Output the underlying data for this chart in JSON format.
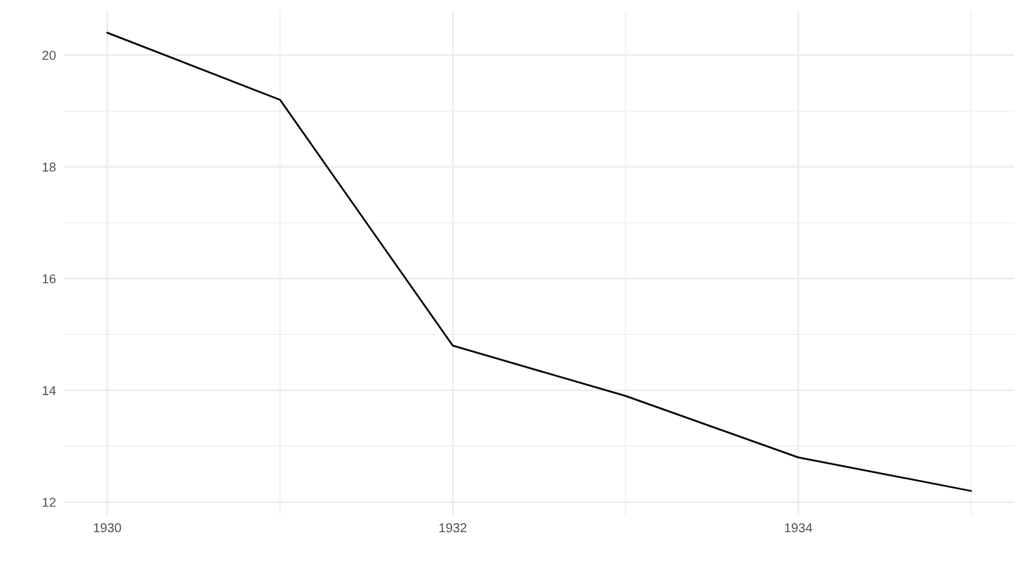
{
  "chart_data": {
    "type": "line",
    "x": [
      1930,
      1931,
      1932,
      1933,
      1934,
      1935
    ],
    "series": [
      {
        "color": "#000000",
        "values": [
          20.4,
          19.2,
          14.8,
          13.9,
          12.8,
          12.2
        ]
      }
    ],
    "xlim": [
      1929.75,
      1935.25
    ],
    "ylim": [
      11.77,
      20.79
    ],
    "xticks": [
      1930,
      {
        "value": 1931,
        "label": null
      },
      1932,
      {
        "value": 1933,
        "label": null
      },
      1934,
      {
        "value": 1935,
        "label": null
      }
    ],
    "yticks": [
      12,
      {
        "value": 13,
        "label": null
      },
      14,
      {
        "value": 15,
        "label": null
      },
      16,
      {
        "value": 17,
        "label": null
      },
      18,
      {
        "value": 19,
        "label": null
      },
      20
    ],
    "grid": true,
    "line_style": "solid"
  }
}
